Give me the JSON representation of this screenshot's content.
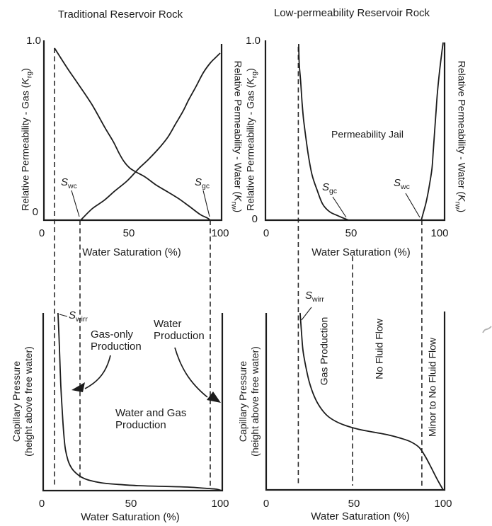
{
  "titles": {
    "left": "Traditional Reservoir Rock",
    "right": "Low-permeability Reservoir Rock"
  },
  "axes": {
    "y_gas": {
      "pre": "Relative Permeability - Gas (",
      "sym": "K",
      "sub": "rg",
      "post": ")"
    },
    "y_water": {
      "pre": "Relative Permeability - Water (",
      "sym": "K",
      "sub": "rw",
      "post": ")"
    },
    "y_cap": {
      "line1": "Capillary Pressure",
      "line2": "(height above free water)"
    },
    "x_title": "Water Saturation (%)",
    "x_ticks": [
      "0",
      "50",
      "100"
    ],
    "y_ticks": {
      "max": "1.0",
      "min": "0"
    }
  },
  "markers": {
    "swc": {
      "sym": "S",
      "sub": "wc"
    },
    "sgc": {
      "sym": "S",
      "sub": "gc"
    },
    "swirr": {
      "sym": "S",
      "sub": "wirr"
    }
  },
  "annotations": {
    "perm_jail": "Permeability Jail",
    "gas_only": {
      "line1": "Gas-only",
      "line2": "Production"
    },
    "water_prod": {
      "line1": "Water",
      "line2": "Production"
    },
    "water_gas": {
      "line1": "Water and Gas",
      "line2": "Production"
    },
    "gas_production": "Gas Production",
    "no_fluid": "No Fluid Flow",
    "minor_no_fluid": "Minor to No Fluid Flow"
  },
  "chart_data": [
    {
      "id": "top-left",
      "type": "line",
      "title": "Traditional Reservoir Rock",
      "xlabel": "Water Saturation (%)",
      "ylabel_left": "Relative Permeability - Gas (Krg)",
      "ylabel_right": "Relative Permeability - Water (Krw)",
      "xlim": [
        0,
        100
      ],
      "ylim": [
        0,
        1.0
      ],
      "grid": false,
      "series": [
        {
          "name": "Krg",
          "x": [
            6,
            13.2,
            19.2,
            27.2,
            34.4,
            39.2,
            42.4,
            45.2,
            48.4,
            52,
            57.2,
            63.2,
            70,
            76.4,
            82.4,
            88.4,
            92.4,
            94
          ],
          "y": [
            0.957,
            0.846,
            0.76,
            0.642,
            0.516,
            0.437,
            0.374,
            0.327,
            0.291,
            0.268,
            0.24,
            0.197,
            0.157,
            0.118,
            0.075,
            0.031,
            0.012,
            0
          ]
        },
        {
          "name": "Krw",
          "x": [
            20.8,
            27.2,
            34,
            40.4,
            47.2,
            53.6,
            59.2,
            65.2,
            70,
            74.4,
            78.4,
            82,
            86,
            90,
            94,
            97.2,
            99.6
          ],
          "y": [
            0,
            0.063,
            0.11,
            0.165,
            0.22,
            0.287,
            0.339,
            0.402,
            0.461,
            0.535,
            0.602,
            0.673,
            0.744,
            0.819,
            0.874,
            0.906,
            0.929
          ]
        }
      ],
      "markers": [
        {
          "label": "Swc",
          "x": 20.4
        },
        {
          "label": "Sgc",
          "x": 94
        }
      ],
      "dashed_lines_x": [
        6,
        20.4,
        94
      ]
    },
    {
      "id": "top-right",
      "type": "line",
      "title": "Low-permeability Reservoir Rock",
      "xlabel": "Water Saturation (%)",
      "ylabel_left": "Relative Permeability - Gas (Krg)",
      "ylabel_right": "Relative Permeability - Water (Krw)",
      "xlim": [
        0,
        100
      ],
      "ylim": [
        0,
        1.0
      ],
      "grid": false,
      "annotations": [
        "Permeability Jail"
      ],
      "series": [
        {
          "name": "Krg",
          "x": [
            18.7,
            19,
            19.8,
            20.6,
            21.4,
            22.6,
            24.2,
            26.2,
            29,
            32.1,
            36.1,
            40.9,
            46.8
          ],
          "y": [
            0.98,
            0.87,
            0.772,
            0.654,
            0.563,
            0.469,
            0.358,
            0.252,
            0.169,
            0.091,
            0.047,
            0.024,
            0
          ]
        },
        {
          "name": "Krw",
          "x": [
            87.7,
            88.9,
            90.1,
            91.3,
            92.5,
            93.7,
            94.4,
            95.2,
            96,
            96.8,
            98,
            99.2,
            100
          ],
          "y": [
            0,
            0.043,
            0.087,
            0.142,
            0.209,
            0.287,
            0.378,
            0.496,
            0.606,
            0.713,
            0.831,
            0.929,
            0.988
          ]
        }
      ],
      "markers": [
        {
          "label": "Sgc",
          "x": 47
        },
        {
          "label": "Swc",
          "x": 88
        }
      ],
      "dashed_lines_x": [
        18.5,
        49,
        88
      ]
    },
    {
      "id": "bottom-left",
      "type": "line",
      "title": "",
      "xlabel": "Water Saturation (%)",
      "ylabel": "Capillary Pressure (height above free water)",
      "xlim": [
        0,
        100
      ],
      "ylim": [
        0,
        1.0
      ],
      "grid": false,
      "annotations": [
        "Gas-only Production",
        "Water and Gas Production",
        "Water Production"
      ],
      "series": [
        {
          "name": "Pc",
          "x": [
            8.3,
            9.1,
            9.9,
            11.1,
            12.3,
            13.9,
            15.9,
            18.7,
            22.2,
            26.6,
            32.5,
            40.5,
            53.2,
            67.1,
            81,
            92.1,
            97.2,
            100
          ],
          "y": [
            1,
            0.809,
            0.59,
            0.378,
            0.243,
            0.171,
            0.127,
            0.096,
            0.072,
            0.056,
            0.044,
            0.036,
            0.028,
            0.024,
            0.02,
            0.012,
            0.008,
            0
          ]
        }
      ],
      "markers": [
        {
          "label": "Swirr",
          "x": 8.5
        }
      ]
    },
    {
      "id": "bottom-right",
      "type": "line",
      "title": "",
      "xlabel": "Water Saturation (%)",
      "ylabel": "Capillary Pressure (height above free water)",
      "xlim": [
        0,
        100
      ],
      "ylim": [
        0,
        1.0
      ],
      "grid": false,
      "annotations": [
        "Gas Production",
        "No Fluid Flow",
        "Minor to No Fluid Flow"
      ],
      "series": [
        {
          "name": "Pc",
          "x": [
            19.1,
            19.9,
            20.7,
            22.3,
            24.3,
            27.1,
            30.3,
            34.3,
            39,
            44.6,
            51.4,
            59.4,
            68.1,
            75.7,
            81.3,
            86.1,
            89.6,
            92.8,
            95.6,
            98,
            99.6
          ],
          "y": [
            1,
            0.888,
            0.788,
            0.696,
            0.608,
            0.528,
            0.468,
            0.42,
            0.388,
            0.364,
            0.344,
            0.328,
            0.312,
            0.292,
            0.272,
            0.24,
            0.188,
            0.128,
            0.072,
            0.028,
            0
          ]
        }
      ],
      "markers": [
        {
          "label": "Swirr",
          "x": 19
        }
      ]
    }
  ]
}
